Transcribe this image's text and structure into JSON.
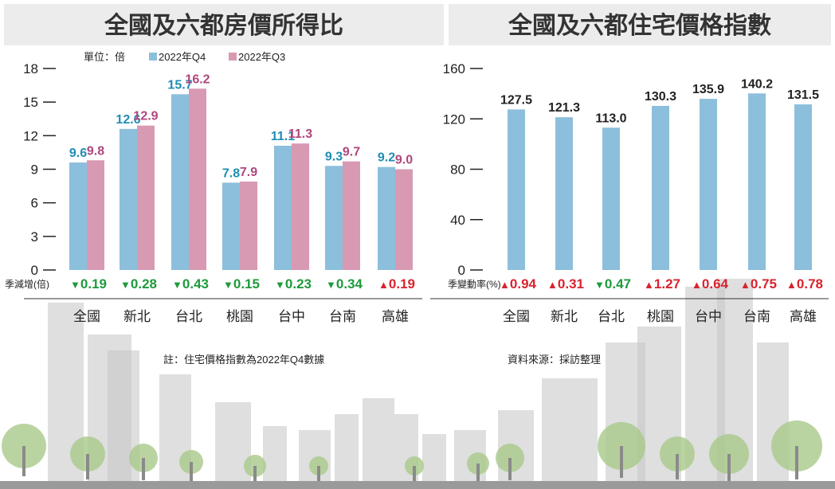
{
  "colors": {
    "q4": "#8cbfdb",
    "q3": "#d899b3",
    "q4_label": "#1f8db3",
    "q3_label": "#b0477d",
    "down": "#1e9a3c",
    "up": "#d9232e",
    "title_bg": "#ececec",
    "building": "#c4c4c4",
    "tree": "#a9c98a"
  },
  "chart_data": [
    {
      "type": "bar",
      "title": "全國及六都房價所得比",
      "unit": "單位：倍",
      "categories": [
        "全國",
        "新北",
        "台北",
        "桃園",
        "台中",
        "台南",
        "高雄"
      ],
      "series": [
        {
          "name": "2022年Q4",
          "values": [
            9.6,
            12.6,
            15.7,
            7.8,
            11.1,
            9.3,
            9.2
          ]
        },
        {
          "name": "2022年Q3",
          "values": [
            9.8,
            12.9,
            16.2,
            7.9,
            11.3,
            9.7,
            9.0
          ]
        }
      ],
      "ylim": [
        0,
        18
      ],
      "yticks": [
        0,
        3,
        6,
        9,
        12,
        15,
        18
      ],
      "change_label": "季減增(倍)",
      "changes": [
        {
          "dir": "down",
          "text": "0.19"
        },
        {
          "dir": "down",
          "text": "0.28"
        },
        {
          "dir": "down",
          "text": "0.43"
        },
        {
          "dir": "down",
          "text": "0.15"
        },
        {
          "dir": "down",
          "text": "0.23"
        },
        {
          "dir": "down",
          "text": "0.34"
        },
        {
          "dir": "up",
          "text": "0.19"
        }
      ],
      "note": "註：住宅價格指數為2022年Q4數據",
      "legend": "top"
    },
    {
      "type": "bar",
      "title": "全國及六都住宅價格指數",
      "categories": [
        "全國",
        "新北",
        "台北",
        "桃園",
        "台中",
        "台南",
        "高雄"
      ],
      "series": [
        {
          "values": [
            127.5,
            121.3,
            113.0,
            130.3,
            135.9,
            140.2,
            131.5
          ]
        }
      ],
      "ylim": [
        0,
        160
      ],
      "yticks": [
        0,
        40,
        80,
        120,
        160
      ],
      "change_label": "季變動率(%)",
      "changes": [
        {
          "dir": "up",
          "text": "0.94"
        },
        {
          "dir": "up",
          "text": "0.31"
        },
        {
          "dir": "down",
          "text": "0.47"
        },
        {
          "dir": "up",
          "text": "1.27"
        },
        {
          "dir": "up",
          "text": "0.64"
        },
        {
          "dir": "up",
          "text": "0.75"
        },
        {
          "dir": "up",
          "text": "0.78"
        }
      ],
      "note": "資料來源：採訪整理"
    }
  ]
}
